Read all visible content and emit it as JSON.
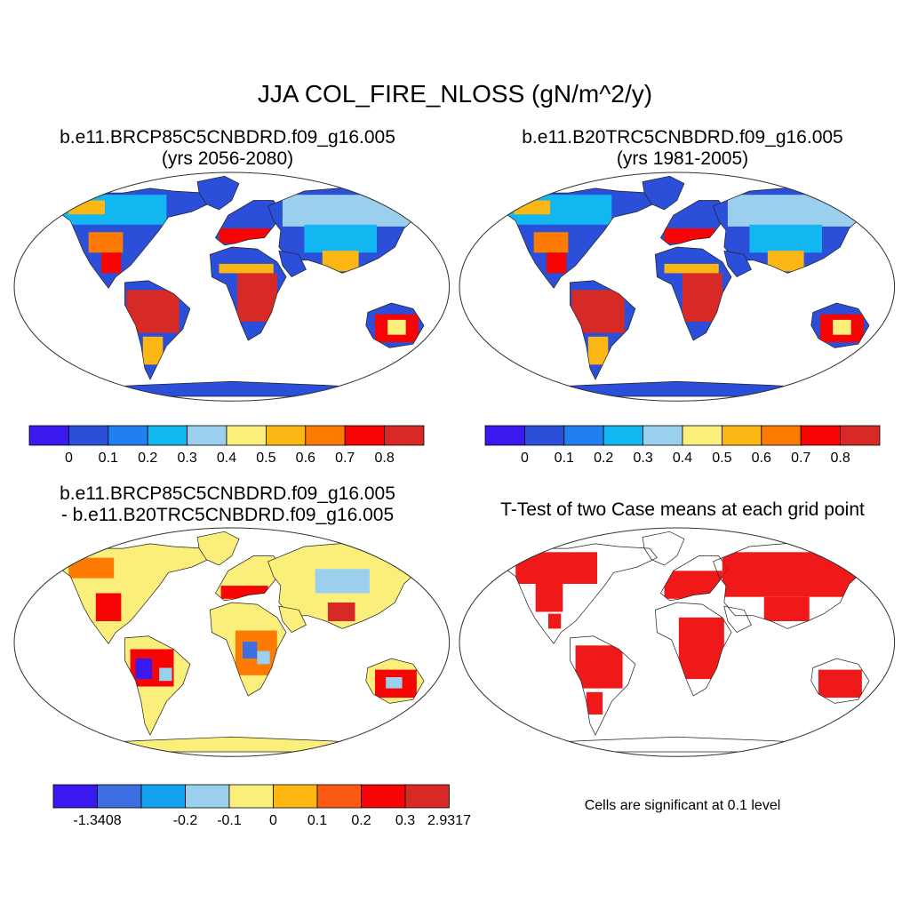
{
  "title": "JJA COL_FIRE_NLOSS (gN/m^2/y)",
  "panels": {
    "top_left": {
      "title_line1": "b.e11.BRCP85C5CNBDRD.f09_g16.005",
      "title_line2": "(yrs 2056-2080)"
    },
    "top_right": {
      "title_line1": "b.e11.B20TRC5CNBDRD.f09_g16.005",
      "title_line2": "(yrs 1981-2005)"
    },
    "bottom_left": {
      "title_line1": "b.e11.BRCP85C5CNBDRD.f09_g16.005",
      "title_line2": "- b.e11.B20TRC5CNBDRD.f09_g16.005"
    },
    "bottom_right": {
      "title_line1": "T-Test of two Case means at each grid point",
      "note": "Cells are significant at 0.1 level"
    }
  },
  "chart_data": [
    {
      "type": "heatmap",
      "panel": "top_left",
      "projection": "robinson",
      "colorbar": {
        "colors": [
          "#3a18f0",
          "#2b4fd8",
          "#2080f0",
          "#12b6f0",
          "#9bcfee",
          "#fbef7c",
          "#fdb714",
          "#fd7b03",
          "#f70404",
          "#d72a26"
        ],
        "tick_labels": [
          "0",
          "0.1",
          "0.2",
          "0.3",
          "0.4",
          "0.5",
          "0.6",
          "0.7",
          "0.8"
        ]
      }
    },
    {
      "type": "heatmap",
      "panel": "top_right",
      "projection": "robinson",
      "colorbar": {
        "colors": [
          "#3a18f0",
          "#2b4fd8",
          "#2080f0",
          "#12b6f0",
          "#9bcfee",
          "#fbef7c",
          "#fdb714",
          "#fd7b03",
          "#f70404",
          "#d72a26"
        ],
        "tick_labels": [
          "0",
          "0.1",
          "0.2",
          "0.3",
          "0.4",
          "0.5",
          "0.6",
          "0.7",
          "0.8"
        ]
      }
    },
    {
      "type": "heatmap",
      "panel": "bottom_left",
      "projection": "robinson",
      "colorbar": {
        "colors": [
          "#3a18f0",
          "#3d6fe0",
          "#12a2f0",
          "#9bcfee",
          "#fbef7c",
          "#fdb714",
          "#fa5a12",
          "#f70404",
          "#d72a26"
        ],
        "tick_labels": [
          "-1.3408",
          "",
          "-0.2",
          "-0.1",
          "0",
          "0.1",
          "0.2",
          "0.3",
          "2.9317"
        ]
      }
    },
    {
      "type": "heatmap",
      "panel": "bottom_right",
      "projection": "robinson",
      "significant_color": "#ee0000"
    }
  ]
}
